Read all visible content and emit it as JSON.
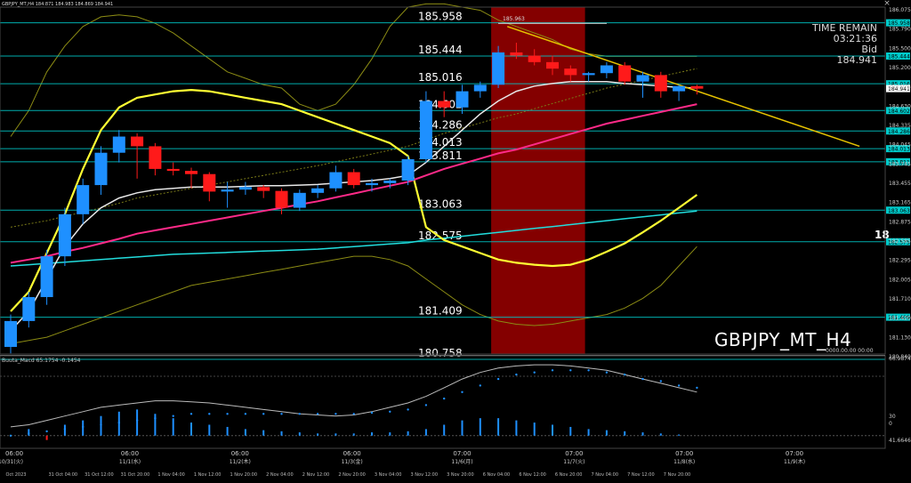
{
  "window": {
    "symbol_timeframe": "GBPJPY_MT,H4",
    "ohlc_text": "184.871 184.983 184.869 184.941",
    "symbol_label": "GBPJPY_MT_H4",
    "close_glyph": "×"
  },
  "info_panel": {
    "time_remain_label": "TIME REMAIN",
    "time_remain_value": "03:21:36",
    "bid_label": "Bid",
    "bid_value": "184.941"
  },
  "subwindow": {
    "indicator_label": "Buuta_Macd 65.1754 -0.1454",
    "overlay_value": "0000.00.00 00:00",
    "right_scale": [
      "66.9874",
      "30",
      "0",
      "41.6646"
    ]
  },
  "colors": {
    "background": "#000000",
    "bull_candle": "#1e90ff",
    "bear_candle": "#ff1a1a",
    "grid_line": "#00cccc",
    "zone": "#8b0000",
    "ma_yellow": "#ffff33",
    "ma_pink": "#ff2a88",
    "ma_cyan": "#22dddd",
    "ma_white": "#e8e8e8",
    "band_olive": "#8c8c14"
  },
  "chart_data": {
    "type": "candlestick",
    "price_axis": [
      "186.075",
      "185.790",
      "185.500",
      "185.200",
      "184.915",
      "184.630",
      "184.335",
      "184.045",
      "183.745",
      "183.455",
      "183.165",
      "182.875",
      "182.585",
      "182.295",
      "182.005",
      "181.710",
      "181.420",
      "181.130",
      "180.840"
    ],
    "ylim": [
      180.84,
      186.2
    ],
    "horizontal_levels": [
      {
        "value": 185.958,
        "label": "185.958",
        "tag": "185.958"
      },
      {
        "value": 185.444,
        "label": "185.444",
        "tag": "185.444"
      },
      {
        "value": 185.016,
        "label": "185.016",
        "tag": "185.016"
      },
      {
        "value": 184.602,
        "label": "184.602",
        "tag": "184.602"
      },
      {
        "value": 184.286,
        "label": "184.286",
        "tag": "184.286"
      },
      {
        "value": 184.013,
        "label": "184.013",
        "tag": "184.013"
      },
      {
        "value": 183.811,
        "label": "183.811",
        "tag": "183.811"
      },
      {
        "value": 183.063,
        "label": "183.063",
        "tag": "183.063"
      },
      {
        "value": 182.575,
        "label": "182.575",
        "tag": "182.575"
      },
      {
        "value": 181.409,
        "label": "181.409",
        "tag": "181.409"
      },
      {
        "value": 180.758,
        "label": "180.758",
        "tag": ""
      }
    ],
    "current_price": {
      "value": 184.941,
      "label": "184.941"
    },
    "marker": {
      "value": 185.963,
      "label": "185.963"
    },
    "edge_label": "18",
    "time_labels": [
      {
        "label": "06:00",
        "slot": 0.2
      },
      {
        "label": "06:00",
        "slot": 6.6
      },
      {
        "label": "06:00",
        "slot": 12.7
      },
      {
        "label": "06:00",
        "slot": 18.9
      },
      {
        "label": "07:00",
        "slot": 25.0
      },
      {
        "label": "07:00",
        "slot": 31.2
      },
      {
        "label": "07:00",
        "slot": 37.3
      },
      {
        "label": "07:00",
        "slot": 43.4
      }
    ],
    "day_labels": [
      {
        "label": "10/31(火)",
        "slot": 0.0
      },
      {
        "label": "11/1(水)",
        "slot": 6.6
      },
      {
        "label": "11/2(木)",
        "slot": 12.7
      },
      {
        "label": "11/3(金)",
        "slot": 18.9
      },
      {
        "label": "11/6(月)",
        "slot": 25.0
      },
      {
        "label": "11/7(火)",
        "slot": 31.2
      },
      {
        "label": "11/8(水)",
        "slot": 37.3
      },
      {
        "label": "11/9(木)",
        "slot": 43.4
      }
    ],
    "bottom_dates": [
      {
        "label": "Oct 2023",
        "slot": 0.0
      },
      {
        "label": "31 Oct 04:00",
        "slot": 2.6
      },
      {
        "label": "31 Oct 12:00",
        "slot": 4.6
      },
      {
        "label": "31 Oct 20:00",
        "slot": 6.6
      },
      {
        "label": "1 Nov 04:00",
        "slot": 8.6
      },
      {
        "label": "1 Nov 12:00",
        "slot": 10.6
      },
      {
        "label": "1 Nov 20:00",
        "slot": 12.6
      },
      {
        "label": "2 Nov 04:00",
        "slot": 14.6
      },
      {
        "label": "2 Nov 12:00",
        "slot": 16.6
      },
      {
        "label": "2 Nov 20:00",
        "slot": 18.6
      },
      {
        "label": "3 Nov 04:00",
        "slot": 20.6
      },
      {
        "label": "3 Nov 12:00",
        "slot": 22.6
      },
      {
        "label": "3 Nov 20:00",
        "slot": 24.6
      },
      {
        "label": "6 Nov 04:00",
        "slot": 26.6
      },
      {
        "label": "6 Nov 12:00",
        "slot": 28.6
      },
      {
        "label": "6 Nov 20:00",
        "slot": 30.6
      },
      {
        "label": "7 Nov 04:00",
        "slot": 32.6
      },
      {
        "label": "7 Nov 12:00",
        "slot": 34.6
      },
      {
        "label": "7 Nov 20:00",
        "slot": 36.6
      }
    ],
    "zone_slots": [
      27.0,
      32.0
    ],
    "candles": [
      {
        "o": 180.95,
        "h": 181.45,
        "l": 180.85,
        "c": 181.35
      },
      {
        "o": 181.35,
        "h": 181.8,
        "l": 181.25,
        "c": 181.72
      },
      {
        "o": 181.72,
        "h": 182.45,
        "l": 181.6,
        "c": 182.35
      },
      {
        "o": 182.35,
        "h": 183.1,
        "l": 182.2,
        "c": 183.0
      },
      {
        "o": 183.0,
        "h": 183.55,
        "l": 182.85,
        "c": 183.45
      },
      {
        "o": 183.45,
        "h": 184.05,
        "l": 183.3,
        "c": 183.95
      },
      {
        "o": 183.95,
        "h": 184.3,
        "l": 183.8,
        "c": 184.2
      },
      {
        "o": 184.2,
        "h": 184.25,
        "l": 183.55,
        "c": 184.05
      },
      {
        "o": 184.05,
        "h": 184.1,
        "l": 183.6,
        "c": 183.7
      },
      {
        "o": 183.7,
        "h": 183.8,
        "l": 183.6,
        "c": 183.67
      },
      {
        "o": 183.67,
        "h": 183.72,
        "l": 183.4,
        "c": 183.62
      },
      {
        "o": 183.62,
        "h": 183.65,
        "l": 183.2,
        "c": 183.35
      },
      {
        "o": 183.35,
        "h": 183.5,
        "l": 183.1,
        "c": 183.38
      },
      {
        "o": 183.38,
        "h": 183.5,
        "l": 183.3,
        "c": 183.42
      },
      {
        "o": 183.42,
        "h": 183.45,
        "l": 183.25,
        "c": 183.36
      },
      {
        "o": 183.36,
        "h": 183.4,
        "l": 183.0,
        "c": 183.1
      },
      {
        "o": 183.1,
        "h": 183.38,
        "l": 183.05,
        "c": 183.33
      },
      {
        "o": 183.33,
        "h": 183.45,
        "l": 183.25,
        "c": 183.4
      },
      {
        "o": 183.4,
        "h": 183.75,
        "l": 183.35,
        "c": 183.65
      },
      {
        "o": 183.65,
        "h": 183.7,
        "l": 183.4,
        "c": 183.45
      },
      {
        "o": 183.45,
        "h": 183.55,
        "l": 183.35,
        "c": 183.48
      },
      {
        "o": 183.48,
        "h": 183.55,
        "l": 183.4,
        "c": 183.52
      },
      {
        "o": 183.52,
        "h": 183.9,
        "l": 183.45,
        "c": 183.85
      },
      {
        "o": 183.85,
        "h": 184.9,
        "l": 183.8,
        "c": 184.75
      },
      {
        "o": 184.75,
        "h": 184.9,
        "l": 184.5,
        "c": 184.65
      },
      {
        "o": 184.65,
        "h": 185.0,
        "l": 184.55,
        "c": 184.9
      },
      {
        "o": 184.9,
        "h": 185.05,
        "l": 184.8,
        "c": 185.0
      },
      {
        "o": 185.0,
        "h": 185.6,
        "l": 184.95,
        "c": 185.5
      },
      {
        "o": 185.5,
        "h": 185.65,
        "l": 185.4,
        "c": 185.45
      },
      {
        "o": 185.45,
        "h": 185.55,
        "l": 185.3,
        "c": 185.35
      },
      {
        "o": 185.35,
        "h": 185.45,
        "l": 185.15,
        "c": 185.25
      },
      {
        "o": 185.25,
        "h": 185.3,
        "l": 185.05,
        "c": 185.15
      },
      {
        "o": 185.15,
        "h": 185.2,
        "l": 185.05,
        "c": 185.18
      },
      {
        "o": 185.18,
        "h": 185.35,
        "l": 185.1,
        "c": 185.3
      },
      {
        "o": 185.3,
        "h": 185.35,
        "l": 185.0,
        "c": 185.05
      },
      {
        "o": 185.05,
        "h": 185.2,
        "l": 184.8,
        "c": 185.15
      },
      {
        "o": 185.15,
        "h": 185.2,
        "l": 184.8,
        "c": 184.9
      },
      {
        "o": 184.9,
        "h": 185.0,
        "l": 184.75,
        "c": 184.98
      },
      {
        "o": 184.98,
        "h": 185.0,
        "l": 184.85,
        "c": 184.94
      }
    ],
    "ma_white": [
      181.2,
      181.5,
      182.0,
      182.5,
      182.85,
      183.1,
      183.25,
      183.33,
      183.38,
      183.4,
      183.42,
      183.42,
      183.42,
      183.43,
      183.44,
      183.44,
      183.45,
      183.46,
      183.48,
      183.5,
      183.52,
      183.55,
      183.6,
      183.8,
      184.05,
      184.3,
      184.55,
      184.75,
      184.9,
      184.98,
      185.02,
      185.05,
      185.05,
      185.05,
      185.02,
      185.0,
      184.98,
      184.96,
      184.95
    ],
    "ma_pink": [
      182.25,
      182.3,
      182.35,
      182.42,
      182.48,
      182.55,
      182.62,
      182.7,
      182.75,
      182.8,
      182.85,
      182.9,
      182.95,
      183.0,
      183.05,
      183.1,
      183.15,
      183.2,
      183.26,
      183.32,
      183.38,
      183.44,
      183.5,
      183.6,
      183.7,
      183.78,
      183.86,
      183.94,
      184.0,
      184.08,
      184.16,
      184.24,
      184.32,
      184.4,
      184.46,
      184.52,
      184.58,
      184.64,
      184.7
    ],
    "ma_yellow": [
      181.5,
      181.8,
      182.4,
      183.0,
      183.7,
      184.3,
      184.65,
      184.8,
      184.85,
      184.9,
      184.92,
      184.9,
      184.85,
      184.8,
      184.75,
      184.7,
      184.6,
      184.5,
      184.4,
      184.3,
      184.2,
      184.1,
      183.9,
      182.8,
      182.6,
      182.5,
      182.4,
      182.3,
      182.25,
      182.22,
      182.2,
      182.22,
      182.3,
      182.42,
      182.55,
      182.72,
      182.9,
      183.1,
      183.3
    ],
    "ma_cyan": [
      182.2,
      182.22,
      182.24,
      182.26,
      182.28,
      182.3,
      182.32,
      182.34,
      182.36,
      182.38,
      182.39,
      182.4,
      182.41,
      182.42,
      182.43,
      182.44,
      182.45,
      182.46,
      182.48,
      182.5,
      182.52,
      182.54,
      182.56,
      182.6,
      182.63,
      182.66,
      182.69,
      182.72,
      182.75,
      182.78,
      182.81,
      182.84,
      182.87,
      182.9,
      182.93,
      182.96,
      182.99,
      183.02,
      183.05
    ],
    "trendline": {
      "start": {
        "slot": 27.5,
        "value": 185.9
      },
      "end": {
        "slot": 47.0,
        "value": 184.05
      }
    },
    "bands": {
      "upper": [
        184.2,
        184.6,
        185.2,
        185.6,
        185.9,
        186.05,
        186.08,
        186.05,
        185.95,
        185.8,
        185.6,
        185.4,
        185.2,
        185.1,
        185.0,
        184.95,
        184.7,
        184.6,
        184.7,
        185.0,
        185.4,
        185.9,
        186.2,
        186.25,
        186.25,
        186.2,
        186.15,
        186.0,
        185.9,
        185.8,
        185.7,
        185.55,
        185.48,
        185.44,
        185.44,
        185.44,
        185.44,
        185.44,
        185.44
      ],
      "lower": [
        181.0,
        181.05,
        181.1,
        181.2,
        181.3,
        181.4,
        181.5,
        181.6,
        181.7,
        181.8,
        181.9,
        181.95,
        182.0,
        182.05,
        182.1,
        182.15,
        182.2,
        182.25,
        182.3,
        182.35,
        182.35,
        182.3,
        182.2,
        182.0,
        181.8,
        181.6,
        181.45,
        181.35,
        181.3,
        181.28,
        181.3,
        181.35,
        181.4,
        181.45,
        181.55,
        181.7,
        181.9,
        182.2,
        182.5
      ]
    }
  },
  "macd_data": {
    "bars": [
      0,
      6,
      -4,
      10,
      14,
      18,
      22,
      24,
      20,
      16,
      12,
      10,
      8,
      6,
      5,
      4,
      3,
      2,
      2,
      2,
      3,
      3,
      4,
      6,
      10,
      14,
      16,
      16,
      14,
      12,
      10,
      8,
      6,
      5,
      4,
      3,
      2,
      1,
      0
    ],
    "line": [
      8,
      10,
      14,
      18,
      22,
      26,
      28,
      30,
      32,
      32,
      31,
      30,
      28,
      26,
      24,
      22,
      20,
      19,
      18,
      19,
      22,
      26,
      30,
      36,
      44,
      52,
      58,
      62,
      64,
      65,
      65,
      64,
      62,
      60,
      56,
      52,
      48,
      44,
      40
    ],
    "signal": [
      0,
      2,
      4,
      6,
      8,
      10,
      12,
      14,
      16,
      18,
      20,
      20,
      20,
      20,
      20,
      20,
      20,
      20,
      20,
      20,
      21,
      22,
      24,
      28,
      34,
      40,
      46,
      52,
      56,
      58,
      60,
      60,
      60,
      58,
      56,
      52,
      50,
      46,
      44
    ]
  }
}
